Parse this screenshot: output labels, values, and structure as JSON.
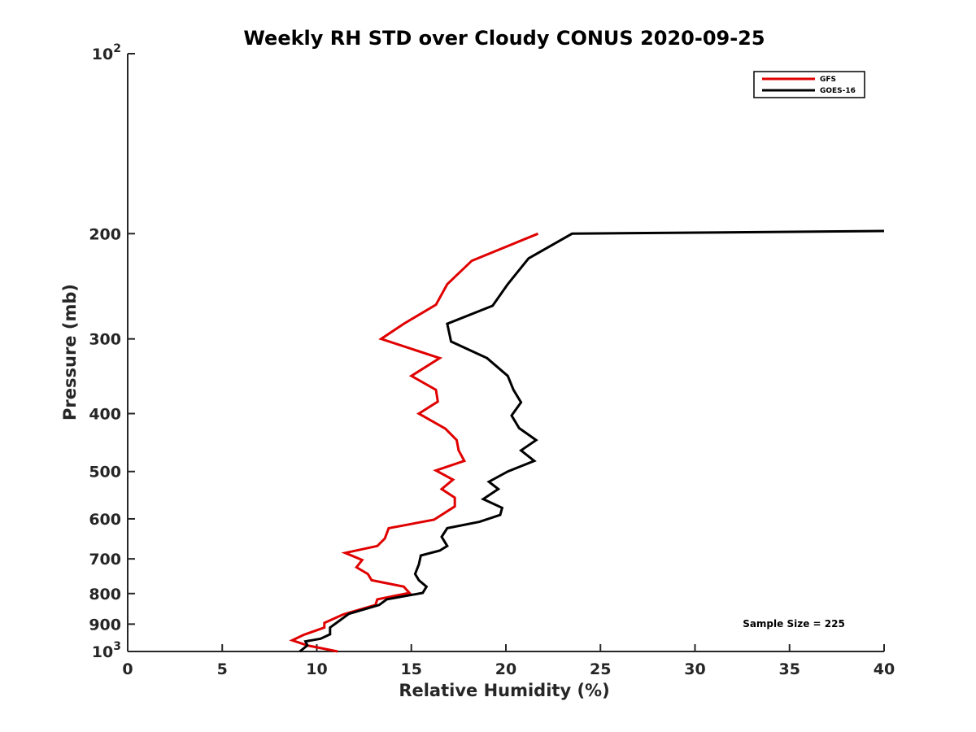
{
  "chart_data": {
    "type": "line",
    "title": "Weekly RH STD over Cloudy CONUS 2020-09-25",
    "xlabel": "Relative Humidity (%)",
    "ylabel": "Pressure (mb)",
    "xlim": [
      0,
      40
    ],
    "ylim": [
      100,
      1000
    ],
    "y_scale": "log",
    "y_reversed": true,
    "grid": false,
    "legend_position": "top-right",
    "x_ticks": [
      0,
      5,
      10,
      15,
      20,
      25,
      30,
      35,
      40
    ],
    "x_tick_labels": [
      "0",
      "5",
      "10",
      "15",
      "20",
      "25",
      "30",
      "35",
      "40"
    ],
    "y_ticks": [
      100,
      200,
      300,
      400,
      500,
      600,
      700,
      800,
      900,
      1000
    ],
    "y_tick_labels": [
      {
        "base": "10",
        "exp": "2"
      },
      {
        "base": "200",
        "exp": ""
      },
      {
        "base": "300",
        "exp": ""
      },
      {
        "base": "400",
        "exp": ""
      },
      {
        "base": "500",
        "exp": ""
      },
      {
        "base": "600",
        "exp": ""
      },
      {
        "base": "700",
        "exp": ""
      },
      {
        "base": "800",
        "exp": ""
      },
      {
        "base": "900",
        "exp": ""
      },
      {
        "base": "10",
        "exp": "3"
      }
    ],
    "annotation": "Sample Size = 225",
    "series": [
      {
        "name": "GFS",
        "color": "#e00000",
        "points": [
          [
            21.7,
            200
          ],
          [
            18.2,
            222
          ],
          [
            16.9,
            243
          ],
          [
            16.3,
            263
          ],
          [
            14.6,
            283
          ],
          [
            13.4,
            300
          ],
          [
            16.5,
            323
          ],
          [
            15.0,
            346
          ],
          [
            16.3,
            365
          ],
          [
            16.4,
            382
          ],
          [
            15.4,
            400
          ],
          [
            16.8,
            424
          ],
          [
            17.4,
            443
          ],
          [
            17.5,
            461
          ],
          [
            17.8,
            480
          ],
          [
            16.3,
            498
          ],
          [
            17.2,
            516
          ],
          [
            16.6,
            535
          ],
          [
            17.3,
            553
          ],
          [
            17.3,
            572
          ],
          [
            16.2,
            602
          ],
          [
            13.8,
            622
          ],
          [
            13.6,
            647
          ],
          [
            13.2,
            666
          ],
          [
            11.5,
            684
          ],
          [
            12.4,
            703
          ],
          [
            12.1,
            723
          ],
          [
            12.7,
            742
          ],
          [
            12.9,
            760
          ],
          [
            14.6,
            779
          ],
          [
            14.9,
            798
          ],
          [
            13.2,
            818
          ],
          [
            13.1,
            836
          ],
          [
            11.4,
            867
          ],
          [
            10.4,
            896
          ],
          [
            10.4,
            912
          ],
          [
            9.3,
            938
          ],
          [
            8.7,
            958
          ],
          [
            9.5,
            977
          ],
          [
            11.1,
            1000
          ]
        ]
      },
      {
        "name": "GOES-16",
        "color": "#000000",
        "points": [
          [
            40,
            198
          ],
          [
            23.5,
            200
          ],
          [
            21.2,
            220
          ],
          [
            20.1,
            243
          ],
          [
            19.3,
            264
          ],
          [
            16.9,
            283
          ],
          [
            17.1,
            303
          ],
          [
            19.0,
            323
          ],
          [
            20.1,
            346
          ],
          [
            20.4,
            365
          ],
          [
            20.8,
            383
          ],
          [
            20.3,
            403
          ],
          [
            20.7,
            423
          ],
          [
            21.6,
            443
          ],
          [
            20.8,
            461
          ],
          [
            21.5,
            480
          ],
          [
            20.1,
            500
          ],
          [
            19.1,
            520
          ],
          [
            19.6,
            535
          ],
          [
            18.8,
            556
          ],
          [
            19.8,
            575
          ],
          [
            19.7,
            591
          ],
          [
            18.6,
            607
          ],
          [
            16.9,
            622
          ],
          [
            16.6,
            643
          ],
          [
            16.9,
            666
          ],
          [
            16.5,
            678
          ],
          [
            15.5,
            691
          ],
          [
            15.4,
            715
          ],
          [
            15.2,
            742
          ],
          [
            15.4,
            760
          ],
          [
            15.8,
            779
          ],
          [
            15.6,
            798
          ],
          [
            13.7,
            818
          ],
          [
            13.3,
            836
          ],
          [
            11.7,
            865
          ],
          [
            11.2,
            888
          ],
          [
            10.7,
            912
          ],
          [
            10.7,
            936
          ],
          [
            10.2,
            952
          ],
          [
            9.4,
            962
          ],
          [
            9.5,
            977
          ],
          [
            9.1,
            1000
          ]
        ]
      }
    ]
  }
}
